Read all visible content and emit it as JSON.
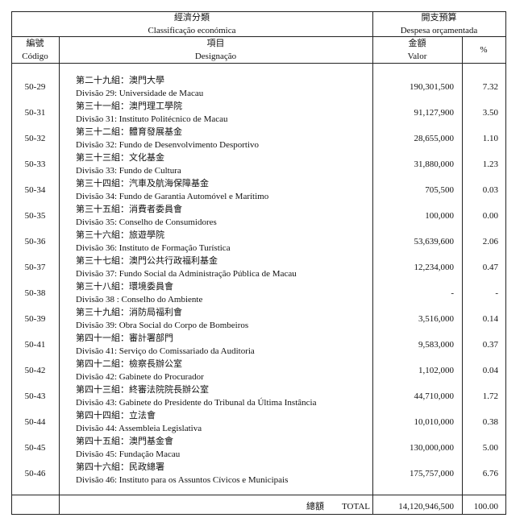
{
  "header": {
    "economic_zh": "經濟分類",
    "economic_pt": "Classificação económica",
    "budget_zh": "開支預算",
    "budget_pt": "Despesa orçamentada",
    "code_zh": "編號",
    "code_pt": "Código",
    "item_zh": "項目",
    "item_pt": "Designação",
    "amount_zh": "金額",
    "amount_pt": "Valor",
    "percent": "%"
  },
  "rows": [
    {
      "code": "50-29",
      "zh": "第二十九組：澳門大學",
      "pt": "Divisão 29: Universidade de Macau",
      "value": "190,301,500",
      "percent": "7.32"
    },
    {
      "code": "50-31",
      "zh": "第三十一組：澳門理工學院",
      "pt": "Divisão 31: Instituto Politécnico de Macau",
      "value": "91,127,900",
      "percent": "3.50"
    },
    {
      "code": "50-32",
      "zh": "第三十二組：體育發展基金",
      "pt": "Divisão 32: Fundo de Desenvolvimento Desportivo",
      "value": "28,655,000",
      "percent": "1.10"
    },
    {
      "code": "50-33",
      "zh": "第三十三組：文化基金",
      "pt": "Divisão 33: Fundo de Cultura",
      "value": "31,880,000",
      "percent": "1.23"
    },
    {
      "code": "50-34",
      "zh": "第三十四組：汽車及航海保障基金",
      "pt": "Divisão 34: Fundo de Garantia Automóvel e Marítimo",
      "value": "705,500",
      "percent": "0.03"
    },
    {
      "code": "50-35",
      "zh": "第三十五組：消費者委員會",
      "pt": "Divisão 35: Conselho de Consumidores",
      "value": "100,000",
      "percent": "0.00"
    },
    {
      "code": "50-36",
      "zh": "第三十六組：旅遊學院",
      "pt": "Divisão 36: Instituto de Formação Turística",
      "value": "53,639,600",
      "percent": "2.06"
    },
    {
      "code": "50-37",
      "zh": "第三十七組：澳門公共行政福利基金",
      "pt": "Divisão 37: Fundo Social da Administração Pública de Macau",
      "value": "12,234,000",
      "percent": "0.47"
    },
    {
      "code": "50-38",
      "zh": "第三十八組：環境委員會",
      "pt": "Divisão 38 : Conselho do Ambiente",
      "value": "-",
      "percent": "-"
    },
    {
      "code": "50-39",
      "zh": "第三十九組：消防局福利會",
      "pt": "Divisão 39: Obra Social do Corpo de Bombeiros",
      "value": "3,516,000",
      "percent": "0.14"
    },
    {
      "code": "50-41",
      "zh": "第四十一組：審計署部門",
      "pt": "Divisão 41: Serviço do Comissariado da Auditoria",
      "value": "9,583,000",
      "percent": "0.37"
    },
    {
      "code": "50-42",
      "zh": "第四十二組：檢察長辦公室",
      "pt": "Divisão 42: Gabinete do Procurador",
      "value": "1,102,000",
      "percent": "0.04"
    },
    {
      "code": "50-43",
      "zh": "第四十三組：終審法院院長辦公室",
      "pt": "Divisão 43: Gabinete do Presidente do Tribunal da Última Instância",
      "value": "44,710,000",
      "percent": "1.72"
    },
    {
      "code": "50-44",
      "zh": "第四十四組：立法會",
      "pt": "Divisão 44: Assembleia Legislativa",
      "value": "10,010,000",
      "percent": "0.38"
    },
    {
      "code": "50-45",
      "zh": "第四十五組：澳門基金會",
      "pt": "Divisão 45: Fundação Macau",
      "value": "130,000,000",
      "percent": "5.00"
    },
    {
      "code": "50-46",
      "zh": "第四十六組：民政總署",
      "pt": "Divisão 46: Instituto para os Assuntos Cívicos e Municipais",
      "value": "175,757,000",
      "percent": "6.76"
    }
  ],
  "total": {
    "label_zh": "總額",
    "label_pt": "TOTAL",
    "value": "14,120,946,500",
    "percent": "100.00"
  }
}
